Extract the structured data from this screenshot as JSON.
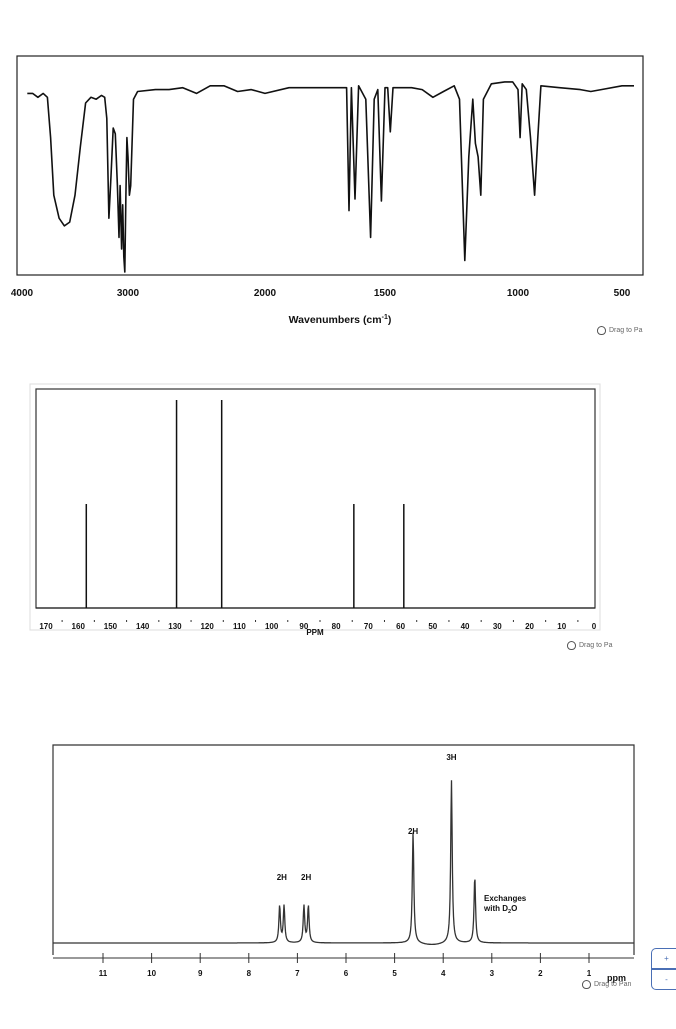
{
  "chart_data": [
    {
      "type": "line",
      "name": "IR spectrum",
      "title": "",
      "xlabel": "Wavenumbers (cm⁻¹)",
      "ylabel": "",
      "xlim": [
        4000,
        450
      ],
      "x_reversed": true,
      "xticks": [
        4000,
        3000,
        2000,
        1500,
        1000,
        500
      ],
      "grid": false,
      "peaks_description": "transmittance dips (0 = baseline top, 1 = full depth)",
      "points": [
        [
          3950,
          0.07
        ],
        [
          3900,
          0.07
        ],
        [
          3850,
          0.09
        ],
        [
          3800,
          0.07
        ],
        [
          3760,
          0.09
        ],
        [
          3730,
          0.3
        ],
        [
          3700,
          0.6
        ],
        [
          3650,
          0.72
        ],
        [
          3600,
          0.76
        ],
        [
          3550,
          0.74
        ],
        [
          3500,
          0.6
        ],
        [
          3450,
          0.35
        ],
        [
          3400,
          0.12
        ],
        [
          3350,
          0.09
        ],
        [
          3300,
          0.1
        ],
        [
          3250,
          0.08
        ],
        [
          3220,
          0.09
        ],
        [
          3200,
          0.2
        ],
        [
          3180,
          0.72
        ],
        [
          3160,
          0.5
        ],
        [
          3140,
          0.25
        ],
        [
          3120,
          0.28
        ],
        [
          3100,
          0.55
        ],
        [
          3085,
          0.82
        ],
        [
          3075,
          0.55
        ],
        [
          3060,
          0.88
        ],
        [
          3050,
          0.65
        ],
        [
          3040,
          0.92
        ],
        [
          3030,
          1.0
        ],
        [
          3020,
          0.6
        ],
        [
          3010,
          0.3
        ],
        [
          3000,
          0.4
        ],
        [
          2990,
          0.6
        ],
        [
          2980,
          0.55
        ],
        [
          2960,
          0.1
        ],
        [
          2930,
          0.06
        ],
        [
          2800,
          0.05
        ],
        [
          2700,
          0.05
        ],
        [
          2600,
          0.04
        ],
        [
          2500,
          0.07
        ],
        [
          2400,
          0.03
        ],
        [
          2300,
          0.03
        ],
        [
          2200,
          0.06
        ],
        [
          2100,
          0.05
        ],
        [
          2000,
          0.07
        ],
        [
          1900,
          0.04
        ],
        [
          1800,
          0.04
        ],
        [
          1700,
          0.04
        ],
        [
          1660,
          0.04
        ],
        [
          1650,
          0.68
        ],
        [
          1640,
          0.04
        ],
        [
          1625,
          0.62
        ],
        [
          1610,
          0.03
        ],
        [
          1580,
          0.1
        ],
        [
          1560,
          0.82
        ],
        [
          1545,
          0.1
        ],
        [
          1530,
          0.05
        ],
        [
          1515,
          0.63
        ],
        [
          1500,
          0.04
        ],
        [
          1490,
          0.04
        ],
        [
          1480,
          0.27
        ],
        [
          1470,
          0.04
        ],
        [
          1400,
          0.04
        ],
        [
          1360,
          0.05
        ],
        [
          1320,
          0.09
        ],
        [
          1280,
          0.06
        ],
        [
          1240,
          0.03
        ],
        [
          1220,
          0.1
        ],
        [
          1200,
          0.94
        ],
        [
          1185,
          0.4
        ],
        [
          1170,
          0.1
        ],
        [
          1160,
          0.33
        ],
        [
          1150,
          0.4
        ],
        [
          1140,
          0.6
        ],
        [
          1130,
          0.1
        ],
        [
          1100,
          0.02
        ],
        [
          1050,
          0.01
        ],
        [
          1020,
          0.01
        ],
        [
          1000,
          0.05
        ],
        [
          990,
          0.3
        ],
        [
          980,
          0.02
        ],
        [
          960,
          0.05
        ],
        [
          940,
          0.3
        ],
        [
          920,
          0.6
        ],
        [
          905,
          0.3
        ],
        [
          890,
          0.03
        ],
        [
          800,
          0.04
        ],
        [
          700,
          0.05
        ],
        [
          650,
          0.06
        ],
        [
          600,
          0.05
        ],
        [
          500,
          0.03
        ],
        [
          460,
          0.03
        ]
      ]
    },
    {
      "type": "bar",
      "name": "13C NMR spectrum",
      "title": "",
      "xlabel": "PPM",
      "xlim": [
        173,
        0
      ],
      "x_reversed": true,
      "xticks": [
        170,
        160,
        150,
        140,
        130,
        120,
        110,
        100,
        90,
        80,
        70,
        60,
        50,
        40,
        30,
        20,
        10,
        0
      ],
      "peaks": [
        {
          "ppm": 157.5,
          "relative_height": 0.5
        },
        {
          "ppm": 129.5,
          "relative_height": 1.0
        },
        {
          "ppm": 115.5,
          "relative_height": 1.0
        },
        {
          "ppm": 74.5,
          "relative_height": 0.5
        },
        {
          "ppm": 59.0,
          "relative_height": 0.5
        }
      ]
    },
    {
      "type": "line",
      "name": "1H NMR spectrum",
      "title": "",
      "xlabel": "ppm",
      "xlim": [
        12,
        0
      ],
      "x_reversed": true,
      "xticks": [
        11,
        10,
        9,
        8,
        7,
        6,
        5,
        4,
        3,
        2,
        1
      ],
      "peaks": [
        {
          "ppm": 7.32,
          "relative_height": 0.2,
          "shape": "doublet",
          "label": "2H"
        },
        {
          "ppm": 6.82,
          "relative_height": 0.2,
          "shape": "doublet",
          "label": "2H"
        },
        {
          "ppm": 4.62,
          "relative_height": 0.6,
          "shape": "singlet",
          "label": "2H"
        },
        {
          "ppm": 3.83,
          "relative_height": 0.88,
          "shape": "singlet",
          "label": "3H"
        },
        {
          "ppm": 3.35,
          "relative_height": 0.36,
          "shape": "singlet",
          "label": "Exchanges with D2O"
        }
      ]
    }
  ],
  "ir": {
    "xlabel_main": "Wavenumbers (cm",
    "xlabel_sup": "-1",
    "xlabel_end": ")",
    "tick_labels": [
      "4000",
      "3000",
      "2000",
      "1500",
      "1000",
      "500"
    ],
    "drag_hint": "Drag to Pa"
  },
  "c13": {
    "axis_label": "PPM",
    "tick_labels": [
      "170",
      "160",
      "150",
      "140",
      "130",
      "120",
      "110",
      "100",
      "90",
      "80",
      "70",
      "60",
      "50",
      "40",
      "30",
      "20",
      "10",
      "0"
    ],
    "drag_hint": "Drag to Pa"
  },
  "h1": {
    "axis_label": "ppm",
    "tick_labels": [
      "11",
      "10",
      "9",
      "8",
      "7",
      "6",
      "5",
      "4",
      "3",
      "2",
      "1"
    ],
    "peak_labels": [
      "2H",
      "2H",
      "2H",
      "3H"
    ],
    "exchange_label_line1": "Exchanges",
    "exchange_label_line2_pre": "with D",
    "exchange_label_sub": "2",
    "exchange_label_line2_post": "O",
    "drag_hint": "Drag to Pan",
    "zoom_in_label": "+",
    "zoom_out_label": "-"
  },
  "colors": {
    "line": "#111111",
    "frame": "#222222",
    "zoom_control": "#4a6fb5"
  }
}
